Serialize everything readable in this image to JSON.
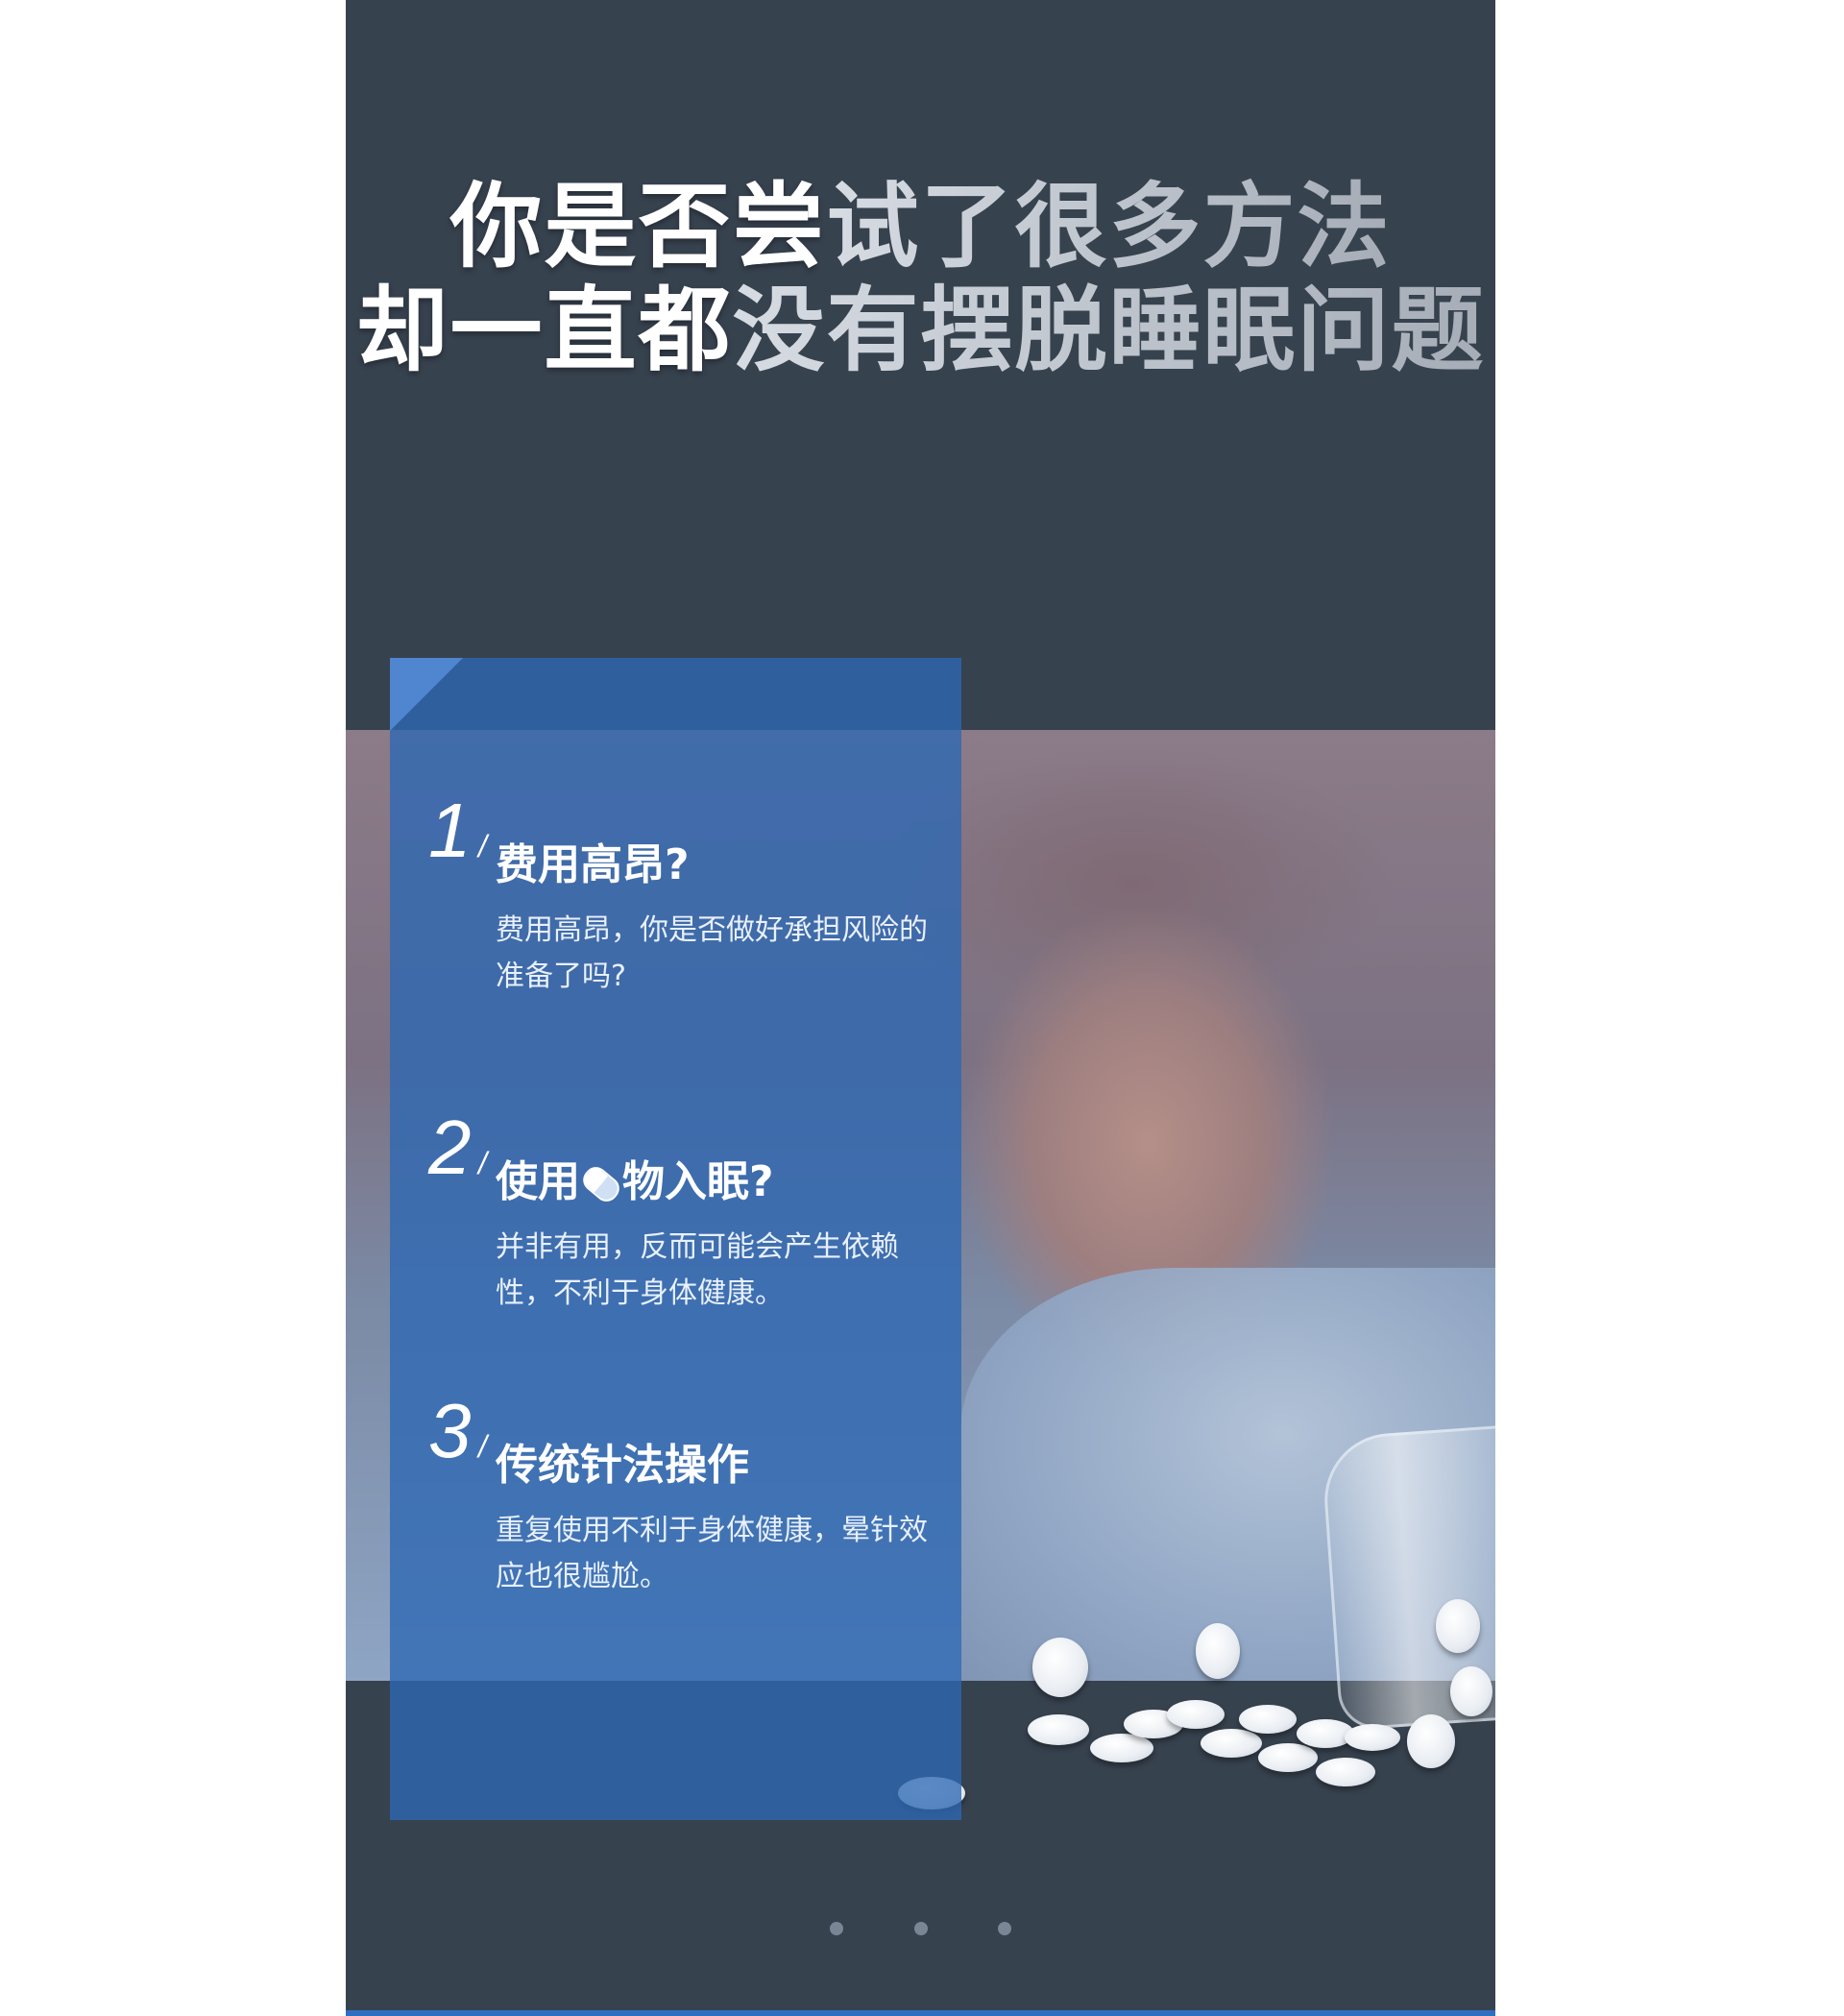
{
  "headline": {
    "line1_a": "你是否尝",
    "line1_b": "试了很多方法",
    "line2_a": "却一直都",
    "line2_b": "没有摆脱睡眠问题"
  },
  "items": [
    {
      "number": "1",
      "slash": "/",
      "title": "费用高昂?",
      "desc": "费用高昂，你是否做好承担风险的准备了吗?"
    },
    {
      "number": "2",
      "slash": "/",
      "title_a": "使用",
      "title_b": "物入眠?",
      "desc": "并非有用，反而可能会产生依赖性，不利于身体健康。"
    },
    {
      "number": "3",
      "slash": "/",
      "title": "传统针法操作",
      "desc": "重复使用不利于身体健康，晕针效应也很尴尬。"
    }
  ],
  "icons": {
    "capsule": "capsule-icon"
  },
  "colors": {
    "background": "#37424f",
    "panel": "#2d68b4",
    "accent": "#2f6fc0"
  },
  "carousel": {
    "page_count": 3
  }
}
